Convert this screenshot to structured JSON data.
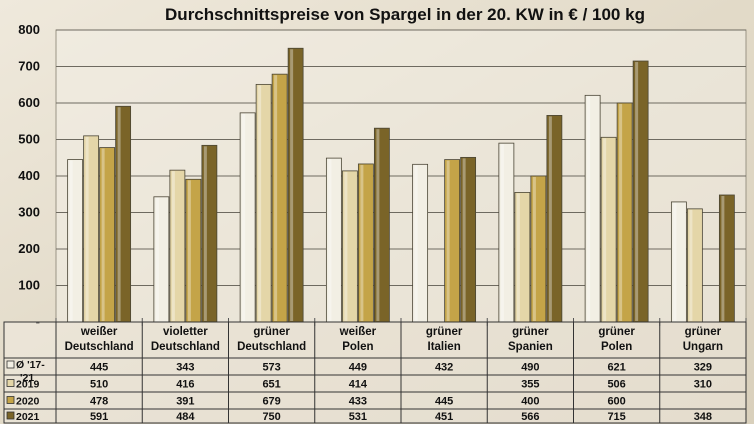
{
  "chart_data": {
    "type": "bar",
    "title": "Durchschnittspreise von Spargel in der 20. KW in € / 100 kg",
    "ylim": [
      0,
      800
    ],
    "yticks": [
      "-",
      "100",
      "200",
      "300",
      "400",
      "500",
      "600",
      "700",
      "800"
    ],
    "grid": true,
    "legend": "data-table-below",
    "categories": [
      [
        "weißer",
        "Deutschland"
      ],
      [
        "violetter",
        "Deutschland"
      ],
      [
        "grüner",
        "Deutschland"
      ],
      [
        "weißer",
        "Polen"
      ],
      [
        "grüner",
        "Italien"
      ],
      [
        "grüner",
        "Spanien"
      ],
      [
        "grüner",
        "Polen"
      ],
      [
        "grüner",
        "Ungarn"
      ]
    ],
    "series": [
      {
        "name": [
          "Ø '17-",
          "'21"
        ],
        "color": "#f2efe4",
        "values": [
          445,
          343,
          573,
          449,
          432,
          490,
          621,
          329
        ]
      },
      {
        "name": [
          "2019"
        ],
        "color": "#e4d6a8",
        "values": [
          510,
          416,
          651,
          414,
          null,
          355,
          506,
          310
        ]
      },
      {
        "name": [
          "2020"
        ],
        "color": "#c4a448",
        "values": [
          478,
          391,
          679,
          433,
          445,
          400,
          600,
          null
        ]
      },
      {
        "name": [
          "2021"
        ],
        "color": "#7a6428",
        "values": [
          591,
          484,
          750,
          531,
          451,
          566,
          715,
          348
        ]
      }
    ]
  }
}
